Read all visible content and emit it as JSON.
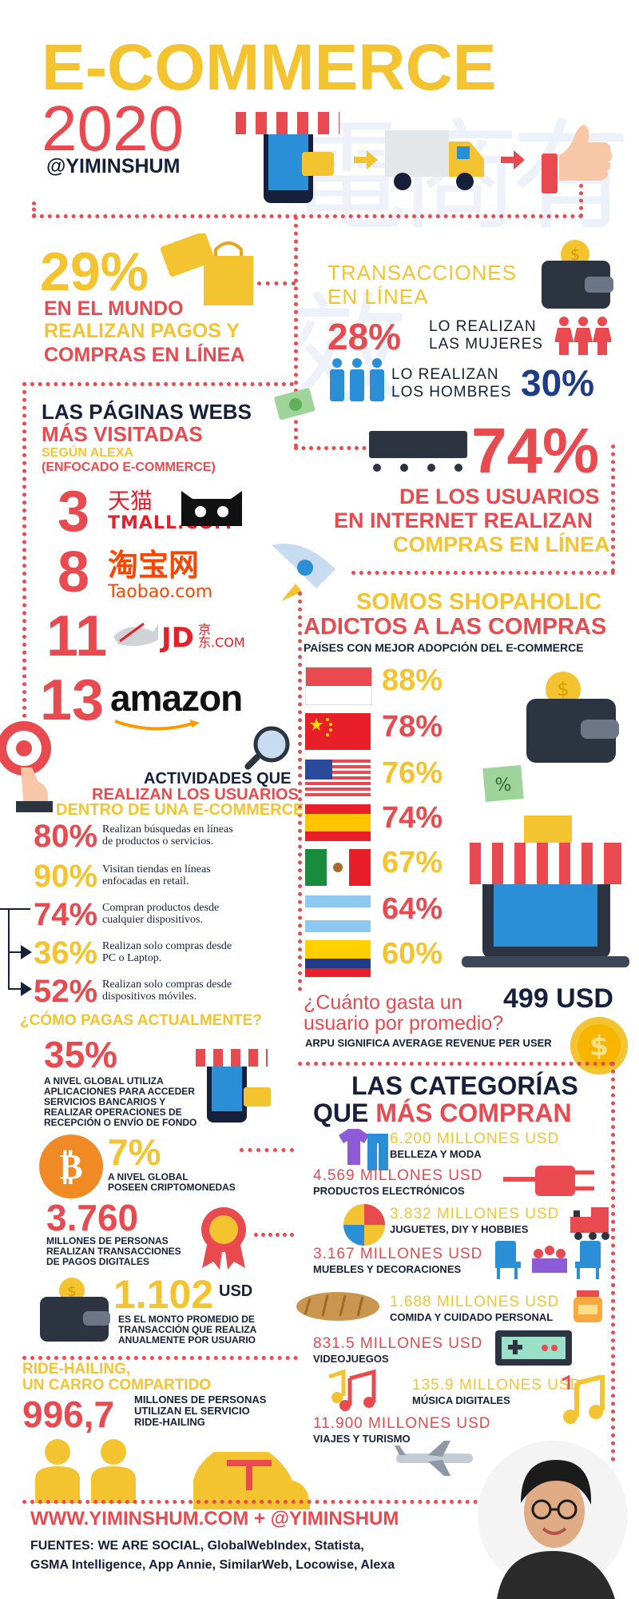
{
  "header": {
    "title": "E-COMMERCE",
    "year": "2020",
    "handle": "@YIMINSHUM",
    "watermark": "電商有效"
  },
  "world": {
    "pct": "29%",
    "line1": "EN EL MUNDO",
    "line2": "REALIZAN PAGOS Y",
    "line3": "COMPRAS EN LÍNEA"
  },
  "transactions": {
    "title1": "TRANSACCIONES",
    "title2": "EN LÍNEA",
    "women_pct": "28%",
    "women_l1": "LO REALIZAN",
    "women_l2": "LAS MUJERES",
    "men_pct": "30%",
    "men_l1": "LO REALIZAN",
    "men_l2": "LOS HOMBRES"
  },
  "sites": {
    "title1": "LAS PÁGINAS WEBS",
    "title2": "MÁS VISITADAS",
    "sub1": "SEGÚN ALEXA",
    "sub2": "(ENFOCADO E-COMMERCE)",
    "items": [
      {
        "rank": "3",
        "logo1": "天猫",
        "logo2": "TMALL.COM"
      },
      {
        "rank": "8",
        "logo1": "淘宝网",
        "logo2": "Taobao.com"
      },
      {
        "rank": "11",
        "logo1": "JD",
        "logo2": "京东.COM"
      },
      {
        "rank": "13",
        "logo1": "amazon",
        "logo2": ""
      }
    ]
  },
  "internet": {
    "pct": "74%",
    "l1": "DE LOS USUARIOS",
    "l2": "EN INTERNET REALIZAN",
    "l3": "COMPRAS EN LÍNEA"
  },
  "shopaholic": {
    "title1": "SOMOS SHOPAHOLIC",
    "title2": "ADICTOS A LAS COMPRAS",
    "subtitle": "PAÍSES CON MEJOR ADOPCIÓN DEL E-COMMERCE",
    "countries": [
      {
        "flag": "indonesia",
        "pct": "88%",
        "color": "#f4c430"
      },
      {
        "flag": "china",
        "pct": "78%",
        "color": "#e84a4f"
      },
      {
        "flag": "usa",
        "pct": "76%",
        "color": "#f4c430"
      },
      {
        "flag": "spain",
        "pct": "74%",
        "color": "#e84a4f"
      },
      {
        "flag": "mexico",
        "pct": "67%",
        "color": "#f4c430"
      },
      {
        "flag": "argentina",
        "pct": "64%",
        "color": "#e84a4f"
      },
      {
        "flag": "colombia",
        "pct": "60%",
        "color": "#f4c430"
      }
    ]
  },
  "activities": {
    "title1": "ACTIVIDADES QUE",
    "title2": "REALIZAN LOS USUARIOS",
    "title3": "DENTRO DE UNA E-COMMERCE",
    "items": [
      {
        "pct": "80%",
        "l1": "Realizan búsquedas en líneas",
        "l2": "de productos o servicios.",
        "color": "#e84a4f"
      },
      {
        "pct": "90%",
        "l1": "Visitan tiendas en líneas",
        "l2": "enfocadas en retail.",
        "color": "#f4c430"
      },
      {
        "pct": "74%",
        "l1": "Compran productos desde",
        "l2": "cualquier dispositivos.",
        "color": "#e84a4f"
      },
      {
        "pct": "36%",
        "l1": "Realizan solo compras desde",
        "l2": "PC o Laptop.",
        "color": "#f4c430"
      },
      {
        "pct": "52%",
        "l1": "Realizan solo compras desde",
        "l2": "dispositivos móviles.",
        "color": "#e84a4f"
      }
    ]
  },
  "arpu": {
    "q1": "¿Cuánto gasta un",
    "value": "499 USD",
    "q2": "usuario por promedio?",
    "note": "ARPU SIGNIFICA AVERAGE REVENUE PER USER"
  },
  "payments": {
    "title": "¿CÓMO PAGAS ACTUALMENTE?",
    "apps_pct": "35%",
    "apps_l1": "A NIVEL GLOBAL UTILIZA",
    "apps_l2": "APLICACIONES PARA ACCEDER",
    "apps_l3": "SERVICIOS BANCARIOS Y",
    "apps_l4": "REALIZAR OPERACIONES DE",
    "apps_l5": "RECEPCIÓN O ENVÍO DE FONDO",
    "crypto_pct": "7%",
    "crypto_l1": "A NIVEL GLOBAL",
    "crypto_l2": "POSEEN CRIPTOMONEDAS",
    "digital_num": "3.760",
    "digital_l1": "MILLONES DE PERSONAS",
    "digital_l2": "REALIZAN TRANSACCIONES",
    "digital_l3": "DE PAGOS DIGITALES",
    "avg_num": "1.102",
    "avg_unit": "USD",
    "avg_l1": "ES EL MONTO PROMEDIO DE",
    "avg_l2": "TRANSACCIÓN QUE REALIZA",
    "avg_l3": "ANUALMENTE POR USUARIO"
  },
  "categories": {
    "title1": "LAS CATEGORÍAS",
    "title2a": "QUE ",
    "title2b": "MÁS COMPRAN",
    "items": [
      {
        "value": "6.200 MILLONES USD",
        "label": "BELLEZA Y MODA",
        "color": "#f4c430"
      },
      {
        "value": "4.569 MILLONES USD",
        "label": "PRODUCTOS ELECTRÓNICOS",
        "color": "#e84a4f"
      },
      {
        "value": "3.832 MILLONES USD",
        "label": "JUGUETES, DIY Y HOBBIES",
        "color": "#f4c430"
      },
      {
        "value": "3.167 MILLONES USD",
        "label": "MUEBLES Y DECORACIONES",
        "color": "#e84a4f"
      },
      {
        "value": "1.688 MILLONES USD",
        "label": "COMIDA Y CUIDADO PERSONAL",
        "color": "#f4c430"
      },
      {
        "value": "831.5 MILLONES USD",
        "label": "VIDEOJUEGOS",
        "color": "#e84a4f"
      },
      {
        "value": "135.9 MILLONES USD",
        "label": "MÚSICA DIGITALES",
        "color": "#f4c430"
      },
      {
        "value": "11.900 MILLONES USD",
        "label": "VIAJES Y TURISMO",
        "color": "#e84a4f"
      }
    ]
  },
  "ride": {
    "title1": "RIDE-HAILING,",
    "title2": "UN CARRO COMPARTIDO",
    "num": "996,7",
    "l1": "MILLONES DE PERSONAS",
    "l2": "UTILIZAN EL SERVICIO",
    "l3": "RIDE-HAILING"
  },
  "footer": {
    "url": "WWW.YIMINSHUM.COM + @YIMINSHUM",
    "sources1": "FUENTES: WE ARE SOCIAL, GlobalWebIndex, Statista,",
    "sources2": "GSMA Intelligence, App Annie, SimilarWeb, Locowise, Alexa"
  },
  "colors": {
    "yellow": "#f4c430",
    "red": "#e84a4f",
    "navy": "#17203a",
    "blue": "#2a8fd6"
  }
}
